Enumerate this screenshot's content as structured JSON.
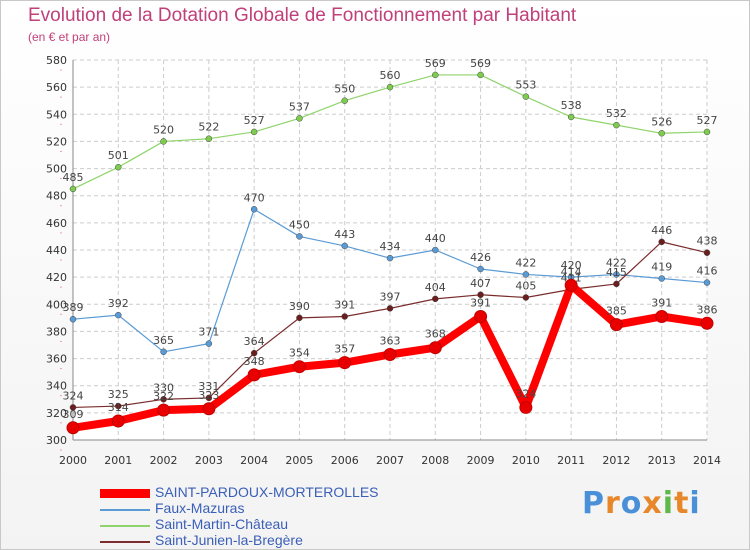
{
  "chart_data": {
    "type": "line",
    "title": "Evolution de la Dotation Globale de Fonctionnement par Habitant",
    "subtitle": "(en € et par an)",
    "x": [
      "2000",
      "2001",
      "2002",
      "2003",
      "2004",
      "2005",
      "2006",
      "2007",
      "2008",
      "2009",
      "2010",
      "2011",
      "2012",
      "2013",
      "2014"
    ],
    "ylim": [
      300,
      580
    ],
    "yticks": [
      300,
      320,
      340,
      360,
      380,
      400,
      420,
      440,
      460,
      480,
      500,
      520,
      540,
      560,
      580
    ],
    "series": [
      {
        "name": "SAINT-PARDOUX-MORTEROLLES",
        "color": "#ff0000",
        "marker": "#e80000",
        "values": [
          309,
          314,
          322,
          323,
          348,
          354,
          357,
          363,
          368,
          391,
          324,
          414,
          385,
          391,
          386
        ]
      },
      {
        "name": "Faux-Mazuras",
        "color": "#5b9bd5",
        "marker": "#5b9bd5",
        "values": [
          389,
          392,
          365,
          371,
          470,
          450,
          443,
          434,
          440,
          426,
          422,
          420,
          422,
          419,
          416
        ]
      },
      {
        "name": "Saint-Martin-Château",
        "color": "#8fd46a",
        "marker": "#7ecb4f",
        "values": [
          485,
          501,
          520,
          522,
          527,
          537,
          550,
          560,
          569,
          569,
          553,
          538,
          532,
          526,
          527
        ]
      },
      {
        "name": "Saint-Junien-la-Bregère",
        "color": "#7b2d2d",
        "marker": "#6b1e1e",
        "values": [
          324,
          325,
          330,
          331,
          364,
          390,
          391,
          397,
          404,
          407,
          405,
          411,
          415,
          446,
          438
        ]
      }
    ]
  },
  "logo": {
    "text": "Proxiti",
    "letters": [
      "P",
      "r",
      "o",
      "x",
      "i",
      "t",
      "i"
    ],
    "colors": [
      "#4a90d9",
      "#e8862a",
      "#4a90d9",
      "#e8862a",
      "#5fb84a",
      "#e8862a",
      "#4a90d9"
    ]
  }
}
